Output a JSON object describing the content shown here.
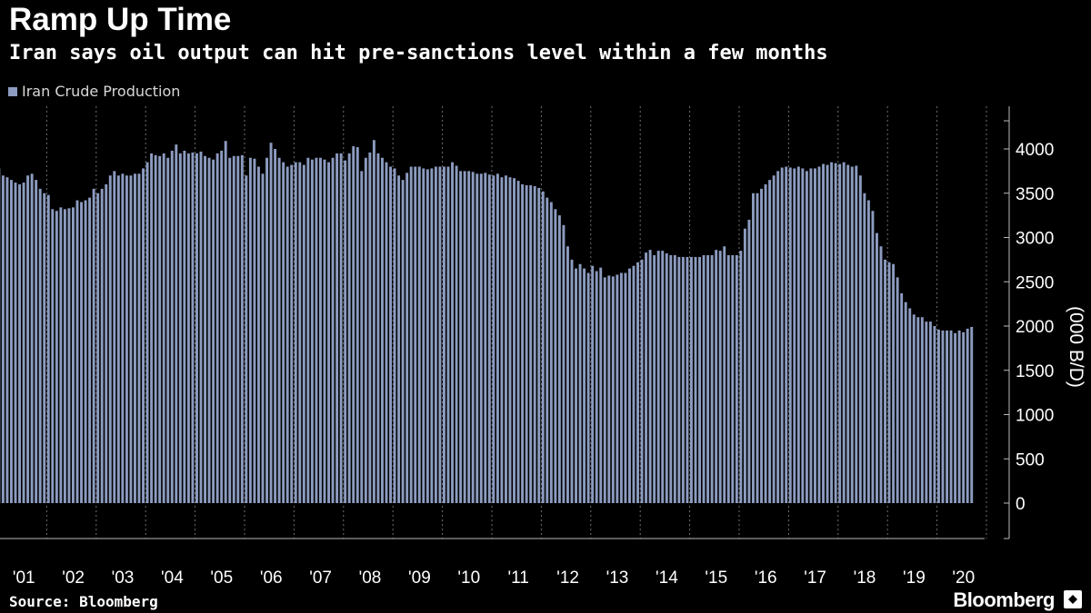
{
  "header": {
    "title": "Ramp Up Time",
    "subtitle": "Iran says oil output can hit pre-sanctions level within a few months"
  },
  "footer": {
    "source": "Source: Bloomberg",
    "brand": "Bloomberg"
  },
  "colors": {
    "background": "#000000",
    "bar": "#8c9bbf",
    "grid": "#6e6e6e",
    "text": "#ffffff"
  },
  "chart_data": {
    "type": "bar",
    "legend": [
      "Iran Crude Production"
    ],
    "ylabel": "(000 B/D)",
    "ylim": [
      0,
      4000
    ],
    "yticks": [
      0,
      500,
      1000,
      1500,
      2000,
      2500,
      3000,
      3500,
      4000
    ],
    "axis_side": "right",
    "grid": true,
    "x_tick_labels": [
      "'01",
      "'02",
      "'03",
      "'04",
      "'05",
      "'06",
      "'07",
      "'08",
      "'09",
      "'10",
      "'11",
      "'12",
      "'13",
      "'14",
      "'15",
      "'16",
      "'17",
      "'18",
      "'19",
      "'20"
    ],
    "series": [
      {
        "name": "Iran Crude Production",
        "years": [
          {
            "year": "'01",
            "values": [
              3780,
              3700,
              3680,
              3650,
              3620,
              3600,
              3620,
              3700,
              3720,
              3650,
              3550,
              3500
            ]
          },
          {
            "year": "'02",
            "values": [
              3480,
              3320,
              3300,
              3340,
              3320,
              3330,
              3340,
              3420,
              3400,
              3420,
              3450,
              3550
            ]
          },
          {
            "year": "'03",
            "values": [
              3500,
              3550,
              3600,
              3700,
              3750,
              3700,
              3720,
              3700,
              3700,
              3720,
              3720,
              3780
            ]
          },
          {
            "year": "'04",
            "values": [
              3850,
              3950,
              3930,
              3920,
              3950,
              3900,
              3980,
              4050,
              3950,
              3980,
              3950,
              3960
            ]
          },
          {
            "year": "'05",
            "values": [
              3950,
              3970,
              3920,
              3900,
              3880,
              3950,
              3980,
              4090,
              3900,
              3920,
              3920,
              3930
            ]
          },
          {
            "year": "'06",
            "values": [
              3700,
              3900,
              3890,
              3800,
              3720,
              3900,
              4070,
              4000,
              3900,
              3850,
              3800,
              3820
            ]
          },
          {
            "year": "'07",
            "values": [
              3850,
              3850,
              3820,
              3900,
              3880,
              3900,
              3900,
              3880,
              3850,
              3900,
              3950,
              3950
            ]
          },
          {
            "year": "'08",
            "values": [
              3870,
              3950,
              4030,
              4020,
              3750,
              3900,
              3960,
              4100,
              3950,
              3900,
              3850,
              3800
            ]
          },
          {
            "year": "'09",
            "values": [
              3780,
              3700,
              3650,
              3730,
              3800,
              3800,
              3800,
              3780,
              3770,
              3780,
              3800,
              3800
            ]
          },
          {
            "year": "'10",
            "values": [
              3800,
              3800,
              3850,
              3810,
              3750,
              3750,
              3750,
              3740,
              3720,
              3720,
              3730,
              3710
            ]
          },
          {
            "year": "'11",
            "values": [
              3700,
              3720,
              3680,
              3700,
              3680,
              3670,
              3640,
              3600,
              3590,
              3590,
              3580,
              3560
            ]
          },
          {
            "year": "'12",
            "values": [
              3520,
              3450,
              3400,
              3320,
              3250,
              3140,
              2900,
              2750,
              2650,
              2700,
              2650,
              2600
            ]
          },
          {
            "year": "'13",
            "values": [
              2680,
              2620,
              2660,
              2550,
              2570,
              2560,
              2580,
              2600,
              2600,
              2650,
              2680,
              2720
            ]
          },
          {
            "year": "'14",
            "values": [
              2750,
              2830,
              2860,
              2800,
              2850,
              2850,
              2820,
              2800,
              2800,
              2780,
              2780,
              2780
            ]
          },
          {
            "year": "'15",
            "values": [
              2780,
              2780,
              2780,
              2800,
              2800,
              2800,
              2860,
              2850,
              2900,
              2800,
              2800,
              2800
            ]
          },
          {
            "year": "'16",
            "values": [
              2850,
              3100,
              3200,
              3500,
              3500,
              3550,
              3600,
              3650,
              3700,
              3750,
              3790,
              3800
            ]
          },
          {
            "year": "'17",
            "values": [
              3790,
              3780,
              3800,
              3780,
              3750,
              3780,
              3780,
              3800,
              3830,
              3820,
              3850,
              3840
            ]
          },
          {
            "year": "'18",
            "values": [
              3830,
              3850,
              3820,
              3800,
              3810,
              3700,
              3500,
              3420,
              3300,
              3050,
              2900,
              2750
            ]
          },
          {
            "year": "'19",
            "values": [
              2720,
              2700,
              2550,
              2370,
              2270,
              2200,
              2130,
              2100,
              2100,
              2050,
              2050,
              2000
            ]
          },
          {
            "year": "'20",
            "values": [
              1960,
              1950,
              1950,
              1950,
              1920,
              1950,
              1930,
              1970,
              1990
            ]
          }
        ]
      }
    ]
  }
}
